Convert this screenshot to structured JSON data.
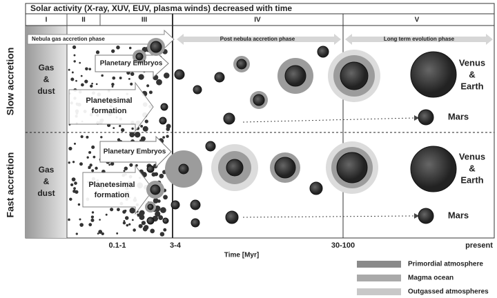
{
  "header": {
    "title": "Solar activity (X-ray, XUV, EUV, plasma winds) decreased with time"
  },
  "phases": [
    "I",
    "II",
    "III",
    "IV",
    "V"
  ],
  "phase_arrows": [
    "Nebula gas accretion phase",
    "Post nebula accretion phase",
    "Long term evolution phase"
  ],
  "rows": [
    "Slow accretion",
    "Fast accretion"
  ],
  "labels": {
    "gas_dust": [
      "Gas",
      "&",
      "dust"
    ],
    "embryos": "Planetary Embryos",
    "planetesimal": [
      "Planetesimal",
      "formation"
    ],
    "venus_earth": [
      "Venus",
      "&",
      "Earth"
    ],
    "mars": "Mars"
  },
  "time_axis": {
    "ticks": [
      "0.1-1",
      "3-4",
      "30-100",
      "present"
    ],
    "label": "Time [Myr]"
  },
  "legend": [
    "Primordial atmosphere",
    "Magma ocean",
    "Outgassed atmospheres"
  ]
}
